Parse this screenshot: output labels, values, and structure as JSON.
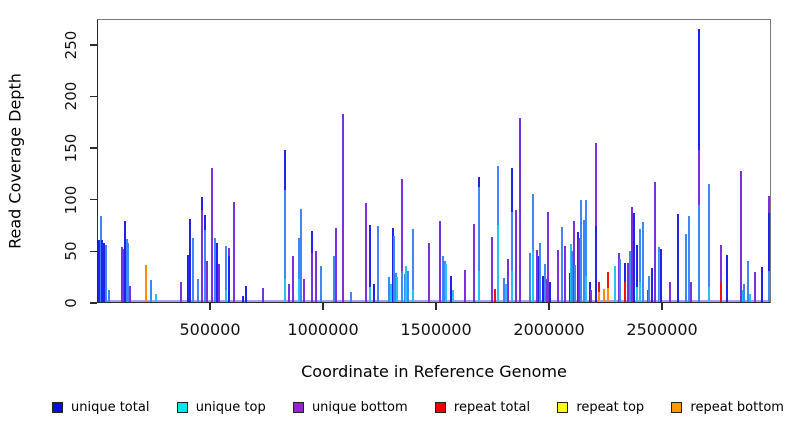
{
  "chart_data": {
    "type": "bar",
    "title": "",
    "xlabel": "Coordinate in Reference Genome",
    "ylabel": "Read Coverage Depth",
    "x_ticks": [
      500000,
      1000000,
      1500000,
      2000000,
      2500000
    ],
    "y_ticks": [
      0,
      50,
      100,
      150,
      200,
      250
    ],
    "xlim": [
      0,
      2982000
    ],
    "ylim": [
      0,
      275
    ],
    "grid": false,
    "legend_position": "bottom",
    "baseline_color": "#a79df2",
    "series_colors": {
      "blue": "#2222ee",
      "dodger": "#3d87f7",
      "cyan": "#25c3ef",
      "purple": "#7b2fdf",
      "red": "#e8150d",
      "orange": "#ff8c1a",
      "yellow": "#ffee00"
    },
    "legend": [
      {
        "label": "unique total",
        "color": "#0b0bea"
      },
      {
        "label": "unique top",
        "color": "#00e6f0"
      },
      {
        "label": "unique bottom",
        "color": "#9a1fd0"
      },
      {
        "label": "repeat total",
        "color": "#ee0000"
      },
      {
        "label": "repeat top",
        "color": "#ffff00"
      },
      {
        "label": "repeat bottom",
        "color": "#ff9800"
      }
    ],
    "spikes": [
      [
        2000,
        [
          [
            "blue",
            60
          ]
        ]
      ],
      [
        8000,
        [
          [
            "dodger",
            84
          ]
        ]
      ],
      [
        15000,
        [
          [
            "blue",
            60
          ]
        ]
      ],
      [
        24000,
        [
          [
            "blue",
            58
          ]
        ]
      ],
      [
        31000,
        [
          [
            "dodger",
            56
          ]
        ]
      ],
      [
        44000,
        [
          [
            "dodger",
            12
          ]
        ]
      ],
      [
        100000,
        [
          [
            "purple",
            54
          ]
        ]
      ],
      [
        107000,
        [
          [
            "purple",
            52
          ]
        ]
      ],
      [
        117000,
        [
          [
            "blue",
            79
          ]
        ]
      ],
      [
        123000,
        [
          [
            "dodger",
            61
          ]
        ]
      ],
      [
        129000,
        [
          [
            "dodger",
            58
          ]
        ]
      ],
      [
        136000,
        [
          [
            "purple",
            16
          ]
        ]
      ],
      [
        210000,
        [
          [
            "orange",
            36
          ]
        ]
      ],
      [
        232000,
        [
          [
            "dodger",
            21
          ]
        ]
      ],
      [
        254000,
        [
          [
            "cyan",
            8
          ]
        ]
      ],
      [
        365000,
        [
          [
            "purple",
            20
          ]
        ]
      ],
      [
        396000,
        [
          [
            "blue",
            46
          ]
        ]
      ],
      [
        405000,
        [
          [
            "blue",
            81
          ]
        ]
      ],
      [
        418000,
        [
          [
            "dodger",
            62
          ]
        ]
      ],
      [
        440000,
        [
          [
            "dodger",
            22
          ]
        ]
      ],
      [
        455000,
        [
          [
            "blue",
            102
          ],
          [
            "purple",
            90
          ]
        ]
      ],
      [
        470000,
        [
          [
            "blue",
            85
          ],
          [
            "dodger",
            70
          ]
        ]
      ],
      [
        480000,
        [
          [
            "purple",
            40
          ]
        ]
      ],
      [
        502000,
        [
          [
            "purple",
            131
          ]
        ]
      ],
      [
        516000,
        [
          [
            "dodger",
            62
          ]
        ]
      ],
      [
        524000,
        [
          [
            "blue",
            58
          ]
        ]
      ],
      [
        533000,
        [
          [
            "purple",
            37
          ]
        ]
      ],
      [
        564000,
        [
          [
            "dodger",
            55
          ],
          [
            "cyan",
            12
          ]
        ]
      ],
      [
        577000,
        [
          [
            "purple",
            53
          ],
          [
            "blue",
            45
          ]
        ]
      ],
      [
        597000,
        [
          [
            "purple",
            98
          ]
        ]
      ],
      [
        640000,
        [
          [
            "blue",
            6
          ]
        ]
      ],
      [
        651000,
        [
          [
            "blue",
            16
          ]
        ]
      ],
      [
        728000,
        [
          [
            "purple",
            14
          ]
        ]
      ],
      [
        825000,
        [
          [
            "blue",
            148
          ],
          [
            "dodger",
            109
          ],
          [
            "cyan",
            22
          ]
        ]
      ],
      [
        843000,
        [
          [
            "purple",
            18
          ]
        ]
      ],
      [
        862000,
        [
          [
            "purple",
            45
          ]
        ]
      ],
      [
        887000,
        [
          [
            "dodger",
            62
          ],
          [
            "cyan",
            22
          ]
        ]
      ],
      [
        898000,
        [
          [
            "dodger",
            91
          ]
        ]
      ],
      [
        908000,
        [
          [
            "purple",
            22
          ]
        ]
      ],
      [
        944000,
        [
          [
            "blue",
            69
          ],
          [
            "purple",
            48
          ]
        ]
      ],
      [
        965000,
        [
          [
            "purple",
            50
          ]
        ]
      ],
      [
        984000,
        [
          [
            "dodger",
            35
          ]
        ]
      ],
      [
        1043000,
        [
          [
            "dodger",
            45
          ]
        ]
      ],
      [
        1052000,
        [
          [
            "purple",
            72
          ]
        ]
      ],
      [
        1083000,
        [
          [
            "purple",
            183
          ]
        ]
      ],
      [
        1118000,
        [
          [
            "dodger",
            10
          ]
        ]
      ],
      [
        1187000,
        [
          [
            "purple",
            97
          ]
        ]
      ],
      [
        1203000,
        [
          [
            "blue",
            75
          ],
          [
            "cyan",
            15
          ]
        ]
      ],
      [
        1221000,
        [
          [
            "blue",
            18
          ]
        ]
      ],
      [
        1237000,
        [
          [
            "dodger",
            74
          ]
        ]
      ],
      [
        1288000,
        [
          [
            "dodger",
            24
          ]
        ]
      ],
      [
        1297000,
        [
          [
            "cyan",
            18
          ]
        ]
      ],
      [
        1304000,
        [
          [
            "blue",
            72
          ]
        ]
      ],
      [
        1311000,
        [
          [
            "dodger",
            64
          ]
        ]
      ],
      [
        1318000,
        [
          [
            "dodger",
            28
          ]
        ]
      ],
      [
        1324000,
        [
          [
            "cyan",
            24
          ]
        ]
      ],
      [
        1344000,
        [
          [
            "purple",
            120
          ],
          [
            "dodger",
            30
          ]
        ]
      ],
      [
        1357000,
        [
          [
            "dodger",
            27
          ]
        ]
      ],
      [
        1364000,
        [
          [
            "cyan",
            35
          ]
        ]
      ],
      [
        1371000,
        [
          [
            "dodger",
            30
          ]
        ]
      ],
      [
        1392000,
        [
          [
            "dodger",
            71
          ],
          [
            "cyan",
            12
          ]
        ]
      ],
      [
        1463000,
        [
          [
            "purple",
            58
          ]
        ]
      ],
      [
        1511000,
        [
          [
            "purple",
            79
          ]
        ]
      ],
      [
        1527000,
        [
          [
            "dodger",
            45
          ]
        ]
      ],
      [
        1534000,
        [
          [
            "dodger",
            40
          ]
        ]
      ],
      [
        1541000,
        [
          [
            "cyan",
            37
          ]
        ]
      ],
      [
        1564000,
        [
          [
            "blue",
            25
          ]
        ]
      ],
      [
        1572000,
        [
          [
            "cyan",
            12
          ]
        ]
      ],
      [
        1626000,
        [
          [
            "purple",
            31
          ]
        ]
      ],
      [
        1666000,
        [
          [
            "purple",
            76
          ]
        ]
      ],
      [
        1685000,
        [
          [
            "blue",
            122
          ],
          [
            "dodger",
            112
          ],
          [
            "cyan",
            30
          ]
        ]
      ],
      [
        1746000,
        [
          [
            "purple",
            63
          ]
        ]
      ],
      [
        1759000,
        [
          [
            "red",
            13
          ]
        ]
      ],
      [
        1772000,
        [
          [
            "dodger",
            133
          ],
          [
            "cyan",
            75
          ]
        ]
      ],
      [
        1799000,
        [
          [
            "dodger",
            23
          ]
        ]
      ],
      [
        1806000,
        [
          [
            "cyan",
            18
          ]
        ]
      ],
      [
        1817000,
        [
          [
            "purple",
            42
          ]
        ]
      ],
      [
        1834000,
        [
          [
            "blue",
            131
          ],
          [
            "dodger",
            88
          ],
          [
            "cyan",
            30
          ]
        ]
      ],
      [
        1852000,
        [
          [
            "purple",
            90
          ]
        ]
      ],
      [
        1870000,
        [
          [
            "purple",
            179
          ]
        ]
      ],
      [
        1914000,
        [
          [
            "dodger",
            48
          ]
        ]
      ],
      [
        1924000,
        [
          [
            "dodger",
            105
          ],
          [
            "cyan",
            50
          ]
        ]
      ],
      [
        1945000,
        [
          [
            "purple",
            51
          ]
        ]
      ],
      [
        1951000,
        [
          [
            "blue",
            45
          ]
        ]
      ],
      [
        1956000,
        [
          [
            "dodger",
            58
          ]
        ]
      ],
      [
        1972000,
        [
          [
            "blue",
            25
          ]
        ]
      ],
      [
        1980000,
        [
          [
            "dodger",
            37
          ]
        ]
      ],
      [
        1986000,
        [
          [
            "purple",
            22
          ]
        ]
      ],
      [
        1994000,
        [
          [
            "purple",
            88
          ]
        ]
      ],
      [
        2002000,
        [
          [
            "blue",
            20
          ]
        ]
      ],
      [
        2038000,
        [
          [
            "purple",
            51
          ]
        ]
      ],
      [
        2056000,
        [
          [
            "dodger",
            73
          ]
        ]
      ],
      [
        2069000,
        [
          [
            "purple",
            55
          ]
        ]
      ],
      [
        2091000,
        [
          [
            "blue",
            28
          ]
        ]
      ],
      [
        2096000,
        [
          [
            "cyan",
            57
          ]
        ]
      ],
      [
        2101000,
        [
          [
            "dodger",
            50
          ]
        ]
      ],
      [
        2109000,
        [
          [
            "purple",
            79
          ]
        ]
      ],
      [
        2113000,
        [
          [
            "dodger",
            36
          ]
        ]
      ],
      [
        2126000,
        [
          [
            "blue",
            68
          ]
        ]
      ],
      [
        2131000,
        [
          [
            "purple",
            62
          ]
        ]
      ],
      [
        2139000,
        [
          [
            "dodger",
            99
          ]
        ]
      ],
      [
        2153000,
        [
          [
            "dodger",
            80
          ]
        ]
      ],
      [
        2162000,
        [
          [
            "dodger",
            99
          ],
          [
            "cyan",
            25
          ]
        ]
      ],
      [
        2180000,
        [
          [
            "blue",
            20
          ]
        ]
      ],
      [
        2185000,
        [
          [
            "purple",
            12
          ]
        ]
      ],
      [
        2206000,
        [
          [
            "purple",
            155
          ],
          [
            "blue",
            74
          ]
        ]
      ],
      [
        2217000,
        [
          [
            "red",
            20
          ],
          [
            "orange",
            10
          ]
        ]
      ],
      [
        2243000,
        [
          [
            "orange",
            13
          ]
        ]
      ],
      [
        2260000,
        [
          [
            "red",
            29
          ],
          [
            "orange",
            14
          ]
        ]
      ],
      [
        2290000,
        [
          [
            "cyan",
            35
          ]
        ]
      ],
      [
        2308000,
        [
          [
            "purple",
            48
          ]
        ]
      ],
      [
        2313000,
        [
          [
            "dodger",
            42
          ]
        ]
      ],
      [
        2334000,
        [
          [
            "blue",
            38
          ],
          [
            "red",
            20
          ]
        ]
      ],
      [
        2348000,
        [
          [
            "purple",
            38
          ]
        ]
      ],
      [
        2357000,
        [
          [
            "dodger",
            50
          ]
        ]
      ],
      [
        2365000,
        [
          [
            "purple",
            93
          ]
        ]
      ],
      [
        2374000,
        [
          [
            "blue",
            87
          ]
        ]
      ],
      [
        2387000,
        [
          [
            "blue",
            56
          ],
          [
            "cyan",
            15
          ]
        ]
      ],
      [
        2401000,
        [
          [
            "dodger",
            71
          ],
          [
            "cyan",
            20
          ]
        ]
      ],
      [
        2414000,
        [
          [
            "dodger",
            78
          ]
        ]
      ],
      [
        2436000,
        [
          [
            "purple",
            12
          ]
        ]
      ],
      [
        2441000,
        [
          [
            "dodger",
            25
          ]
        ]
      ],
      [
        2454000,
        [
          [
            "blue",
            33
          ]
        ]
      ],
      [
        2467000,
        [
          [
            "purple",
            117
          ]
        ]
      ],
      [
        2485000,
        [
          [
            "dodger",
            54
          ]
        ]
      ],
      [
        2490000,
        [
          [
            "cyan",
            50
          ]
        ]
      ],
      [
        2495000,
        [
          [
            "blue",
            52
          ]
        ]
      ],
      [
        2533000,
        [
          [
            "purple",
            20
          ]
        ]
      ],
      [
        2569000,
        [
          [
            "blue",
            86
          ]
        ]
      ],
      [
        2605000,
        [
          [
            "dodger",
            66
          ]
        ]
      ],
      [
        2618000,
        [
          [
            "dodger",
            84
          ]
        ]
      ],
      [
        2627000,
        [
          [
            "purple",
            20
          ]
        ]
      ],
      [
        2662000,
        [
          [
            "blue",
            266
          ],
          [
            "purple",
            148
          ],
          [
            "dodger",
            95
          ]
        ]
      ],
      [
        2706000,
        [
          [
            "dodger",
            115
          ],
          [
            "cyan",
            15
          ]
        ]
      ],
      [
        2760000,
        [
          [
            "purple",
            56
          ],
          [
            "red",
            20
          ]
        ]
      ],
      [
        2785000,
        [
          [
            "blue",
            46
          ]
        ]
      ],
      [
        2847000,
        [
          [
            "purple",
            128
          ]
        ]
      ],
      [
        2857000,
        [
          [
            "cyan",
            12
          ]
        ]
      ],
      [
        2864000,
        [
          [
            "dodger",
            18
          ]
        ]
      ],
      [
        2882000,
        [
          [
            "dodger",
            40
          ]
        ]
      ],
      [
        2891000,
        [
          [
            "cyan",
            8
          ]
        ]
      ],
      [
        2913000,
        [
          [
            "purple",
            29
          ]
        ]
      ],
      [
        2944000,
        [
          [
            "blue",
            34
          ]
        ]
      ],
      [
        2975000,
        [
          [
            "purple",
            103
          ],
          [
            "blue",
            87
          ],
          [
            "dodger",
            30
          ]
        ]
      ]
    ]
  }
}
